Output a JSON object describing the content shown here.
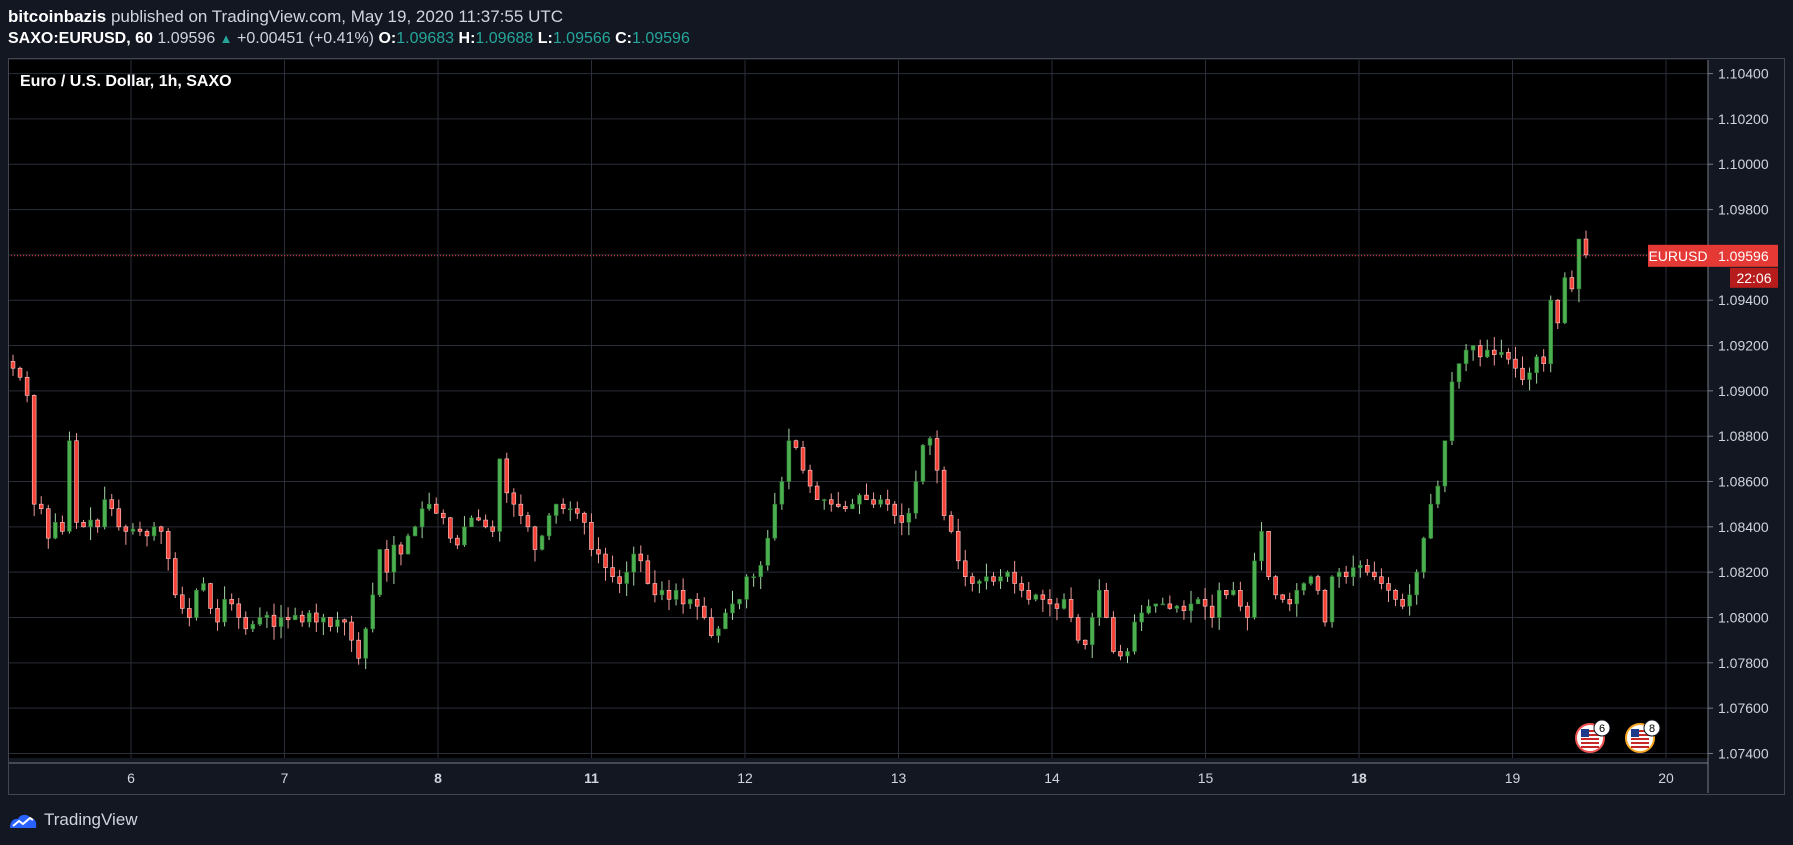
{
  "header": {
    "author": "bitcoinbazis",
    "published": "published on TradingView.com, May 19, 2020 11:37:55 UTC",
    "symbol": "SAXO:EURUSD, 60",
    "last": "1.09596",
    "change": "+0.00451 (+0.41%)",
    "o_label": "O:",
    "o_value": "1.09683",
    "h_label": "H:",
    "h_value": "1.09688",
    "l_label": "L:",
    "l_value": "1.09566",
    "c_label": "C:",
    "c_value": "1.09596"
  },
  "footer": {
    "brand": "TradingView"
  },
  "colors": {
    "up": "#26a69a",
    "down": "#ef5350",
    "up_body": "#4caf50",
    "price_tag": "#e53935",
    "grid": "#2a2e39"
  },
  "chart_data": {
    "type": "candlestick",
    "title": "Euro / U.S. Dollar, 1h, SAXO",
    "ylim": [
      1.0738,
      1.1046
    ],
    "y_ticks": [
      "1.07400",
      "1.07600",
      "1.07800",
      "1.08000",
      "1.08200",
      "1.08400",
      "1.08600",
      "1.08800",
      "1.09000",
      "1.09200",
      "1.09400",
      "1.09600",
      "1.09800",
      "1.10000",
      "1.10200",
      "1.10400"
    ],
    "x_ticks": [
      "6",
      "7",
      "8",
      "11",
      "12",
      "13",
      "14",
      "15",
      "18",
      "19",
      "20"
    ],
    "bold_x_ticks": [
      "8",
      "11",
      "18"
    ],
    "last_price": {
      "symbol": "EURUSD",
      "value": "1.09596",
      "countdown": "22:06"
    },
    "events": [
      {
        "icon": "us-flag-icon",
        "count": "6"
      },
      {
        "icon": "us-flag-icon",
        "count": "8"
      }
    ],
    "closes_approx": [
      1.091,
      1.0906,
      1.0898,
      1.085,
      1.0848,
      1.0835,
      1.0842,
      1.0838,
      1.0878,
      1.0842,
      1.084,
      1.0843,
      1.084,
      1.0852,
      1.0848,
      1.084,
      1.0838,
      1.0839,
      1.0838,
      1.0836,
      1.084,
      1.0838,
      1.0826,
      1.081,
      1.0804,
      1.08,
      1.0812,
      1.0815,
      1.0804,
      1.0798,
      1.0808,
      1.0806,
      1.08,
      1.0795,
      1.0797,
      1.08,
      1.0801,
      1.0796,
      1.08,
      1.0799,
      1.0801,
      1.0798,
      1.0802,
      1.0798,
      1.08,
      1.0796,
      1.0799,
      1.0798,
      1.079,
      1.0782,
      1.0795,
      1.081,
      1.083,
      1.082,
      1.0832,
      1.0828,
      1.0836,
      1.084,
      1.0848,
      1.085,
      1.0846,
      1.0844,
      1.0835,
      1.0832,
      1.084,
      1.0844,
      1.0843,
      1.084,
      1.0838,
      1.087,
      1.0855,
      1.085,
      1.0845,
      1.084,
      1.083,
      1.0836,
      1.0845,
      1.085,
      1.0848,
      1.0848,
      1.0846,
      1.0842,
      1.083,
      1.0828,
      1.0822,
      1.0818,
      1.0815,
      1.082,
      1.0828,
      1.0825,
      1.0815,
      1.081,
      1.0812,
      1.0808,
      1.0812,
      1.0806,
      1.0808,
      1.0805,
      1.08,
      1.0792,
      1.0795,
      1.0802,
      1.0806,
      1.0808,
      1.0818,
      1.0818,
      1.0823,
      1.0835,
      1.085,
      1.086,
      1.0878,
      1.0875,
      1.0865,
      1.0858,
      1.0852,
      1.0852,
      1.085,
      1.0849,
      1.0848,
      1.085,
      1.0854,
      1.0852,
      1.085,
      1.0852,
      1.085,
      1.0845,
      1.0842,
      1.0846,
      1.086,
      1.0876,
      1.0879,
      1.0865,
      1.0845,
      1.0838,
      1.0825,
      1.0818,
      1.0815,
      1.0816,
      1.0818,
      1.0816,
      1.0818,
      1.082,
      1.0815,
      1.0812,
      1.0808,
      1.081,
      1.0808,
      1.0806,
      1.0804,
      1.0808,
      1.08,
      1.079,
      1.0788,
      1.08,
      1.0812,
      1.08,
      1.0785,
      1.0783,
      1.0785,
      1.0798,
      1.0802,
      1.0805,
      1.0806,
      1.0806,
      1.0804,
      1.0805,
      1.0803,
      1.0806,
      1.0808,
      1.0805,
      1.08,
      1.0812,
      1.081,
      1.0812,
      1.0805,
      1.08,
      1.0825,
      1.0838,
      1.0818,
      1.081,
      1.0808,
      1.0806,
      1.0812,
      1.0815,
      1.0818,
      1.0812,
      1.0798,
      1.0818,
      1.082,
      1.0818,
      1.0822,
      1.0823,
      1.082,
      1.0818,
      1.0815,
      1.0812,
      1.0808,
      1.0805,
      1.081,
      1.082,
      1.0835,
      1.085,
      1.0858,
      1.0878,
      1.0904,
      1.0912,
      1.0918,
      1.092,
      1.0915,
      1.0918,
      1.0916,
      1.0917,
      1.0914,
      1.091,
      1.0905,
      1.0908,
      1.0915,
      1.0912,
      1.094,
      1.093,
      1.095,
      1.0945,
      1.0967,
      1.096
    ]
  }
}
